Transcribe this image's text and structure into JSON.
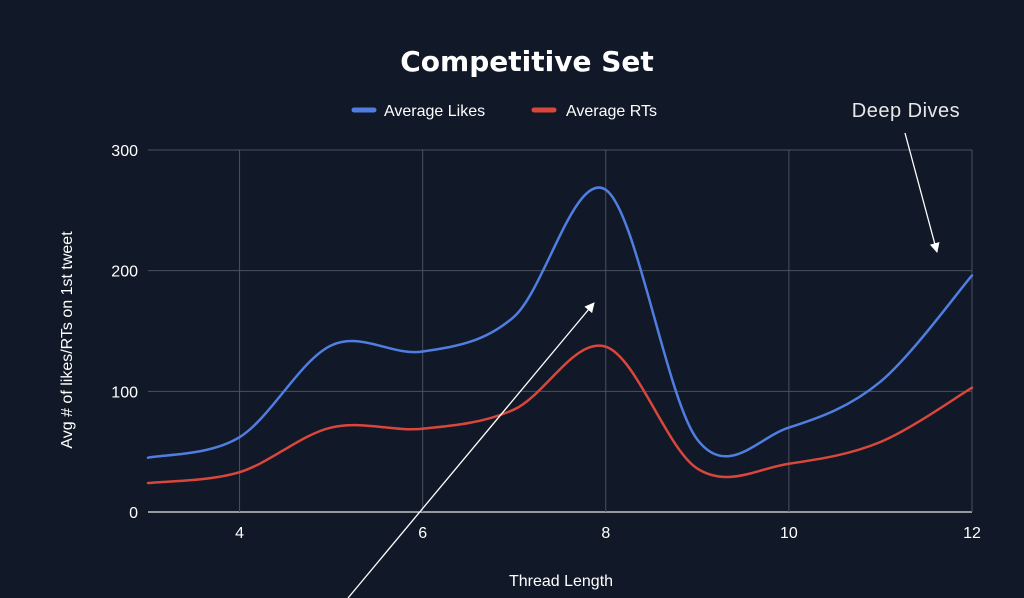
{
  "chart_data": {
    "type": "line",
    "title": "Competitive Set",
    "xlabel": "Thread Length",
    "ylabel": "Avg # of likes/RTs on 1st tweet",
    "xlim": [
      3,
      12
    ],
    "ylim": [
      0,
      300
    ],
    "x_ticks": [
      "4",
      "6",
      "8",
      "10",
      "12"
    ],
    "y_ticks": [
      "0",
      "100",
      "200",
      "300"
    ],
    "grid": true,
    "legend_position": "top",
    "series": [
      {
        "name": "Average Likes",
        "color": "#4f7ee0",
        "x": [
          3,
          4,
          5,
          6,
          7,
          8,
          9,
          10,
          11,
          12
        ],
        "y": [
          45,
          62,
          138,
          133,
          162,
          267,
          60,
          70,
          108,
          196
        ]
      },
      {
        "name": "Average RTs",
        "color": "#d9473c",
        "x": [
          3,
          4,
          5,
          6,
          7,
          8,
          9,
          10,
          11,
          12
        ],
        "y": [
          24,
          33,
          70,
          69,
          85,
          137,
          36,
          40,
          58,
          103
        ]
      }
    ],
    "annotations": [
      {
        "text": "Deep Dives"
      }
    ]
  }
}
